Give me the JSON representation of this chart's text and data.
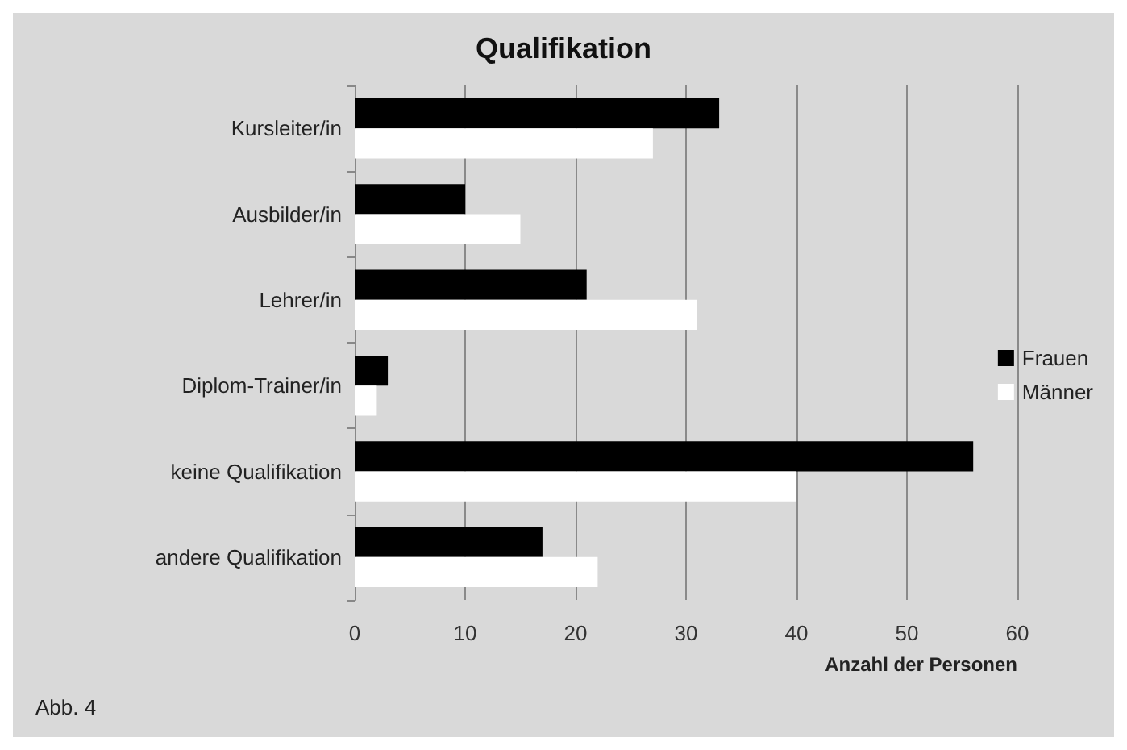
{
  "chart_data": {
    "type": "bar",
    "orientation": "horizontal",
    "title": "Qualifikation",
    "xlabel": "Anzahl der Personen",
    "categories": [
      "Kursleiter/in",
      "Ausbilder/in",
      "Lehrer/in",
      "Diplom-Trainer/in",
      "keine Qualifikation",
      "andere Qualifikation"
    ],
    "series": [
      {
        "name": "Frauen",
        "color": "#000000",
        "values": [
          33,
          10,
          21,
          3,
          56,
          17
        ]
      },
      {
        "name": "Männer",
        "color": "#ffffff",
        "values": [
          27,
          15,
          31,
          2,
          40,
          22
        ]
      }
    ],
    "xlim": [
      0,
      60
    ],
    "xticks": [
      0,
      10,
      20,
      30,
      40,
      50,
      60
    ],
    "grid": "x",
    "legend": "right",
    "annotations": [
      "Abb. 4"
    ]
  }
}
